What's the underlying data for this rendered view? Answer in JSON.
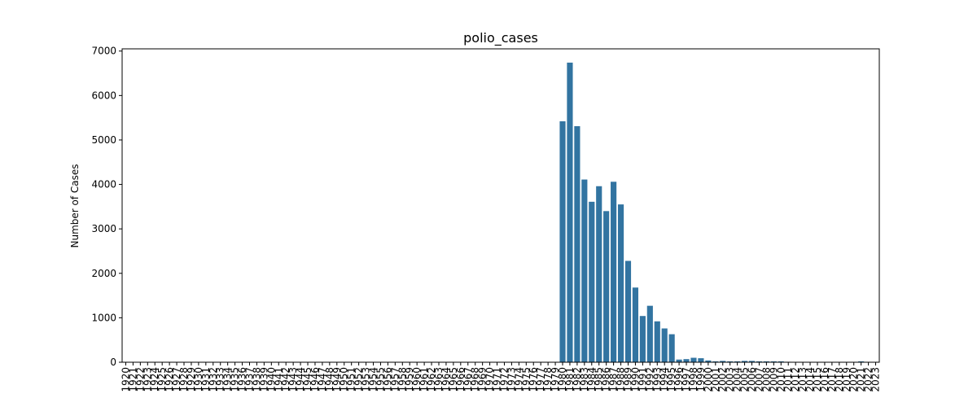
{
  "chart_data": {
    "type": "bar",
    "title": "polio_cases",
    "xlabel": "",
    "ylabel": "Number of Cases",
    "ylim": [
      0,
      7050
    ],
    "yticks": [
      0,
      1000,
      2000,
      3000,
      4000,
      5000,
      6000,
      7000
    ],
    "grid": false,
    "bar_color": "#3274a1",
    "categories": [
      "1920",
      "1921",
      "1922",
      "1923",
      "1924",
      "1925",
      "1926",
      "1927",
      "1928",
      "1929",
      "1930",
      "1931",
      "1932",
      "1933",
      "1934",
      "1935",
      "1936",
      "1937",
      "1938",
      "1939",
      "1940",
      "1941",
      "1942",
      "1943",
      "1944",
      "1945",
      "1946",
      "1947",
      "1948",
      "1949",
      "1950",
      "1951",
      "1952",
      "1953",
      "1954",
      "1955",
      "1956",
      "1957",
      "1958",
      "1959",
      "1960",
      "1961",
      "1962",
      "1963",
      "1964",
      "1965",
      "1966",
      "1967",
      "1968",
      "1969",
      "1970",
      "1971",
      "1972",
      "1973",
      "1974",
      "1975",
      "1976",
      "1977",
      "1978",
      "1979",
      "1980",
      "1981",
      "1982",
      "1983",
      "1984",
      "1985",
      "1986",
      "1987",
      "1988",
      "1989",
      "1990",
      "1991",
      "1992",
      "1993",
      "1994",
      "1995",
      "1996",
      "1997",
      "1998",
      "1999",
      "2000",
      "2001",
      "2002",
      "2003",
      "2004",
      "2005",
      "2006",
      "2007",
      "2008",
      "2009",
      "2010",
      "2011",
      "2012",
      "2013",
      "2014",
      "2015",
      "2016",
      "2017",
      "2018",
      "2019",
      "2020",
      "2021",
      "2022",
      "2023"
    ],
    "values": [
      0,
      0,
      0,
      0,
      0,
      0,
      0,
      0,
      0,
      0,
      0,
      0,
      0,
      0,
      0,
      0,
      0,
      0,
      0,
      0,
      0,
      0,
      0,
      0,
      0,
      0,
      0,
      0,
      0,
      0,
      0,
      0,
      0,
      0,
      0,
      0,
      0,
      0,
      0,
      0,
      0,
      0,
      0,
      0,
      0,
      0,
      0,
      0,
      0,
      0,
      0,
      0,
      0,
      0,
      0,
      0,
      0,
      0,
      0,
      0,
      5420,
      6740,
      5310,
      4110,
      3610,
      3960,
      3400,
      4060,
      3550,
      2280,
      1680,
      1040,
      1270,
      920,
      760,
      630,
      60,
      70,
      100,
      90,
      40,
      20,
      30,
      20,
      20,
      30,
      30,
      20,
      20,
      20,
      20,
      10,
      0,
      0,
      0,
      0,
      0,
      0,
      0,
      0,
      0,
      20,
      0,
      0
    ]
  }
}
